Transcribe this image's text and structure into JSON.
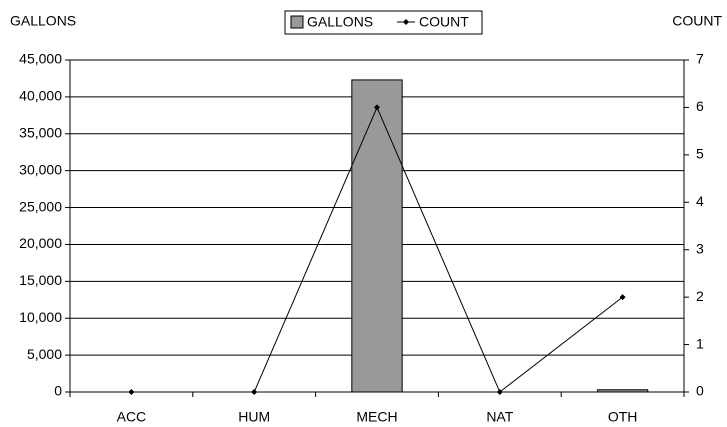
{
  "chart_data": {
    "type": "bar",
    "y_label": "GALLONS",
    "y2_label": "COUNT",
    "categories": [
      "ACC",
      "HUM",
      "MECH",
      "NAT",
      "OTH"
    ],
    "series": [
      {
        "name": "GALLONS",
        "type": "bar",
        "color": "#999999",
        "values": [
          0,
          0,
          42300,
          0,
          300
        ]
      },
      {
        "name": "COUNT",
        "type": "line",
        "axis": "y2",
        "color": "#000000",
        "values": [
          0,
          0,
          6,
          0,
          2
        ]
      }
    ],
    "ylim": [
      0,
      45000
    ],
    "yticks": [
      0,
      {
        "value": 5000,
        "label": "5,000"
      },
      {
        "value": 10000,
        "label": "10,000"
      },
      {
        "value": 15000,
        "label": "15,000"
      },
      {
        "value": 20000,
        "label": "20,000"
      },
      {
        "value": 25000,
        "label": "25,000"
      },
      {
        "value": 30000,
        "label": "30,000"
      },
      {
        "value": 35000,
        "label": "35,000"
      },
      {
        "value": 40000,
        "label": "40,000"
      },
      {
        "value": 45000,
        "label": "45,000"
      }
    ],
    "y2lim": [
      0,
      7
    ],
    "y2ticks": [
      0,
      1,
      2,
      3,
      4,
      5,
      6,
      7
    ],
    "grid": true,
    "legend": "top"
  }
}
